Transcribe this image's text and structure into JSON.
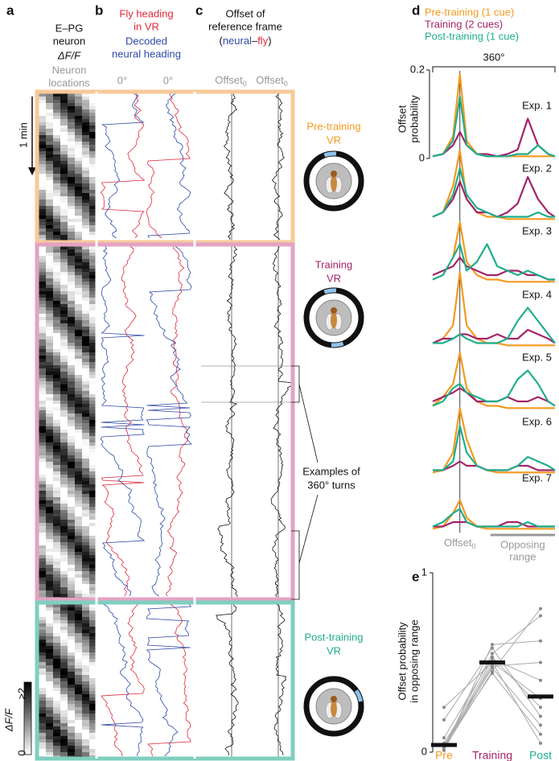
{
  "panel_a": {
    "letter": "a",
    "title": [
      "E–PG",
      "neuron"
    ],
    "dff": "ΔF/F",
    "locations": [
      "Neuron",
      "locations"
    ],
    "time": "1 min",
    "colorbar": {
      "max": "≥2",
      "min": "0",
      "label": "ΔF/F"
    }
  },
  "panel_b": {
    "letter": "b",
    "fly": [
      "Fly heading",
      "in VR"
    ],
    "decoded": [
      "Decoded",
      "neural heading"
    ],
    "zero": [
      "0°",
      "0°"
    ]
  },
  "panel_c": {
    "letter": "c",
    "title": [
      "Offset of",
      "reference frame"
    ],
    "open": "(",
    "neural": "neural",
    "dash": "–",
    "fly": "fly",
    "close": ")",
    "offset": [
      "Offset",
      "Offset"
    ],
    "sub": [
      "0",
      "0"
    ]
  },
  "conditions": [
    [
      "Pre-training",
      "VR"
    ],
    [
      "Training",
      "VR"
    ],
    [
      "Post-training",
      "VR"
    ]
  ],
  "turns": [
    "Examples of",
    "360° turns"
  ],
  "chart_data": [
    {
      "type": "line",
      "letter": "d",
      "range_label": "360°",
      "ylabel": [
        "Offset",
        "probability"
      ],
      "xlim": [
        0,
        360
      ],
      "ylim": [
        0,
        0.2
      ],
      "yticks": [
        0,
        0.2
      ],
      "offset_x": 80,
      "offset_label": "Offset",
      "offset_sub": "0",
      "opposing_label": [
        "Opposing",
        "range"
      ],
      "opposing_range": [
        170,
        360
      ],
      "x": [
        0,
        30,
        60,
        80,
        100,
        130,
        160,
        190,
        220,
        250,
        280,
        310,
        340,
        360
      ],
      "series": [
        {
          "name": "Pre-training (1 cue)",
          "color": "#f39a1f"
        },
        {
          "name": "Training (2 cues)",
          "color": "#a3246a"
        },
        {
          "name": "Post-training (1 cue)",
          "color": "#1fae8c"
        }
      ],
      "experiments": [
        {
          "name": "Exp. 1",
          "values": [
            [
              0.005,
              0.01,
              0.05,
              0.19,
              0.04,
              0.01,
              0.005,
              0.005,
              0.005,
              0.005,
              0.005,
              0.005,
              0.005,
              0.005
            ],
            [
              0.005,
              0.01,
              0.03,
              0.06,
              0.03,
              0.01,
              0.01,
              0.005,
              0.01,
              0.02,
              0.09,
              0.03,
              0.01,
              0.005
            ],
            [
              0.005,
              0.01,
              0.04,
              0.14,
              0.03,
              0.01,
              0.005,
              0.005,
              0.005,
              0.01,
              0.01,
              0.03,
              0.01,
              0.005
            ]
          ]
        },
        {
          "name": "Exp. 2",
          "values": [
            [
              0.01,
              0.02,
              0.08,
              0.16,
              0.05,
              0.02,
              0.01,
              0.01,
              0.005,
              0.005,
              0.005,
              0.005,
              0.005,
              0.005
            ],
            [
              0.01,
              0.02,
              0.05,
              0.09,
              0.05,
              0.02,
              0.02,
              0.01,
              0.02,
              0.04,
              0.1,
              0.05,
              0.02,
              0.01
            ],
            [
              0.01,
              0.02,
              0.06,
              0.12,
              0.06,
              0.03,
              0.02,
              0.01,
              0.01,
              0.01,
              0.01,
              0.02,
              0.01,
              0.01
            ]
          ]
        },
        {
          "name": "Exp. 3",
          "values": [
            [
              0.01,
              0.02,
              0.06,
              0.14,
              0.05,
              0.02,
              0.01,
              0.01,
              0.005,
              0.005,
              0.005,
              0.005,
              0.005,
              0.005
            ],
            [
              0.02,
              0.03,
              0.04,
              0.06,
              0.04,
              0.03,
              0.02,
              0.02,
              0.03,
              0.03,
              0.02,
              0.02,
              0.01,
              0.01
            ],
            [
              0.01,
              0.02,
              0.06,
              0.09,
              0.03,
              0.05,
              0.09,
              0.04,
              0.03,
              0.02,
              0.03,
              0.02,
              0.01,
              0.01
            ]
          ]
        },
        {
          "name": "Exp. 4",
          "values": [
            [
              0.01,
              0.02,
              0.05,
              0.17,
              0.05,
              0.02,
              0.01,
              0.01,
              0.005,
              0.005,
              0.005,
              0.005,
              0.005,
              0.005
            ],
            [
              0.01,
              0.02,
              0.02,
              0.03,
              0.03,
              0.02,
              0.02,
              0.03,
              0.02,
              0.02,
              0.04,
              0.03,
              0.02,
              0.01
            ],
            [
              0.01,
              0.01,
              0.02,
              0.03,
              0.02,
              0.01,
              0.01,
              0.01,
              0.02,
              0.06,
              0.09,
              0.06,
              0.03,
              0.01
            ]
          ]
        },
        {
          "name": "Exp. 5",
          "values": [
            [
              0.01,
              0.03,
              0.06,
              0.13,
              0.05,
              0.02,
              0.01,
              0.01,
              0.005,
              0.005,
              0.005,
              0.005,
              0.005,
              0.005
            ],
            [
              0.02,
              0.03,
              0.04,
              0.05,
              0.04,
              0.02,
              0.02,
              0.02,
              0.03,
              0.02,
              0.02,
              0.03,
              0.02,
              0.01
            ],
            [
              0.01,
              0.02,
              0.05,
              0.06,
              0.04,
              0.03,
              0.02,
              0.02,
              0.03,
              0.07,
              0.09,
              0.06,
              0.02,
              0.01
            ]
          ]
        },
        {
          "name": "Exp. 6",
          "values": [
            [
              0.005,
              0.01,
              0.05,
              0.15,
              0.08,
              0.02,
              0.01,
              0.005,
              0.005,
              0.005,
              0.005,
              0.005,
              0.005,
              0.005
            ],
            [
              0.01,
              0.01,
              0.02,
              0.03,
              0.02,
              0.02,
              0.01,
              0.01,
              0.01,
              0.02,
              0.02,
              0.01,
              0.01,
              0.01
            ],
            [
              0.01,
              0.01,
              0.03,
              0.11,
              0.05,
              0.02,
              0.01,
              0.01,
              0.01,
              0.02,
              0.04,
              0.03,
              0.02,
              0.01
            ]
          ]
        },
        {
          "name": "Exp. 7",
          "values": [
            [
              0.005,
              0.01,
              0.04,
              0.07,
              0.03,
              0.01,
              0.005,
              0.005,
              0.005,
              0.005,
              0.005,
              0.005,
              0.005,
              0.005
            ],
            [
              0.01,
              0.01,
              0.02,
              0.02,
              0.02,
              0.01,
              0.01,
              0.01,
              0.02,
              0.02,
              0.01,
              0.01,
              0.01,
              0.01
            ],
            [
              0.01,
              0.02,
              0.04,
              0.05,
              0.02,
              0.01,
              0.01,
              0.01,
              0.01,
              0.01,
              0.02,
              0.01,
              0.01,
              0.01
            ]
          ]
        }
      ]
    },
    {
      "type": "strip",
      "letter": "e",
      "ylabel": [
        "Offset probability",
        "in opposing range"
      ],
      "categories": [
        "Pre",
        "Training",
        "Post"
      ],
      "colors": [
        "#f39a1f",
        "#a3246a",
        "#1fae8c"
      ],
      "values": [
        0.04,
        0.5,
        0.31
      ],
      "ylim": [
        0,
        1
      ],
      "yticks": [
        0,
        1
      ],
      "flies": [
        [
          0.02,
          0.45,
          0.8
        ],
        [
          0.03,
          0.55,
          0.76
        ],
        [
          0.01,
          0.6,
          0.62
        ],
        [
          0.05,
          0.48,
          0.5
        ],
        [
          0.02,
          0.52,
          0.4
        ],
        [
          0.25,
          0.5,
          0.3
        ],
        [
          0.18,
          0.58,
          0.2
        ],
        [
          0.04,
          0.44,
          0.1
        ],
        [
          0.01,
          0.5,
          0.05
        ],
        [
          0.08,
          0.53,
          0.25
        ],
        [
          0.03,
          0.47,
          0.15
        ]
      ]
    }
  ]
}
